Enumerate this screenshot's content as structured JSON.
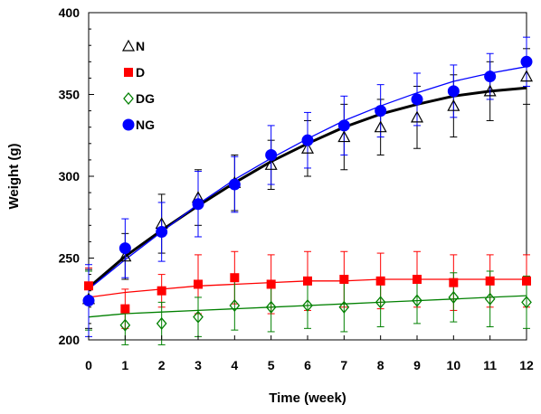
{
  "chart_data": {
    "type": "line",
    "xlabel": "Time (week)",
    "ylabel": "Weight (g)",
    "xlim": [
      0,
      12
    ],
    "ylim": [
      200,
      400
    ],
    "x_ticks": [
      0,
      1,
      2,
      3,
      4,
      5,
      6,
      7,
      8,
      9,
      10,
      11,
      12
    ],
    "y_ticks": [
      200,
      250,
      300,
      350,
      400
    ],
    "grid": false,
    "legend_position": "top-left",
    "x": [
      0,
      1,
      2,
      3,
      4,
      5,
      6,
      7,
      8,
      9,
      10,
      11,
      12
    ],
    "series": [
      {
        "name": "N",
        "marker": "open-triangle",
        "color": "#000000",
        "values": [
          225,
          251,
          271,
          287,
          296,
          307,
          317,
          324,
          330,
          336,
          343,
          352,
          361
        ],
        "errors": [
          18,
          14,
          18,
          17,
          17,
          15,
          17,
          20,
          17,
          19,
          19,
          18,
          17
        ],
        "fit": [
          232,
          251,
          267,
          282,
          296,
          309,
          320,
          330,
          338,
          344,
          349,
          352,
          354
        ]
      },
      {
        "name": "D",
        "marker": "filled-square",
        "color": "#ff0000",
        "values": [
          233,
          219,
          230,
          234,
          238,
          234,
          236,
          237,
          236,
          237,
          235,
          236,
          236
        ],
        "errors": [
          11,
          12,
          10,
          18,
          16,
          18,
          18,
          17,
          17,
          17,
          17,
          16,
          16
        ],
        "fit": [
          226,
          229,
          231,
          233,
          234,
          235,
          236,
          236,
          237,
          237,
          237,
          237,
          237
        ]
      },
      {
        "name": "DG",
        "marker": "open-diamond",
        "color": "#008000",
        "values": [
          224,
          209,
          210,
          214,
          221,
          220,
          221,
          220,
          223,
          224,
          226,
          225,
          223
        ],
        "errors": [
          18,
          12,
          13,
          12,
          15,
          15,
          14,
          15,
          15,
          14,
          15,
          17,
          16
        ],
        "fit": [
          214,
          216,
          217,
          218,
          219,
          220,
          221,
          222,
          223,
          224,
          225,
          226,
          227
        ]
      },
      {
        "name": "NG",
        "marker": "filled-circle",
        "color": "#0000ff",
        "values": [
          224,
          256,
          266,
          283,
          295,
          313,
          322,
          331,
          340,
          347,
          352,
          361,
          370
        ],
        "errors": [
          22,
          18,
          18,
          20,
          17,
          18,
          17,
          18,
          16,
          16,
          16,
          14,
          15
        ],
        "fit": [
          231,
          249,
          266,
          283,
          298,
          311,
          323,
          334,
          343,
          351,
          358,
          363,
          367
        ]
      }
    ]
  }
}
